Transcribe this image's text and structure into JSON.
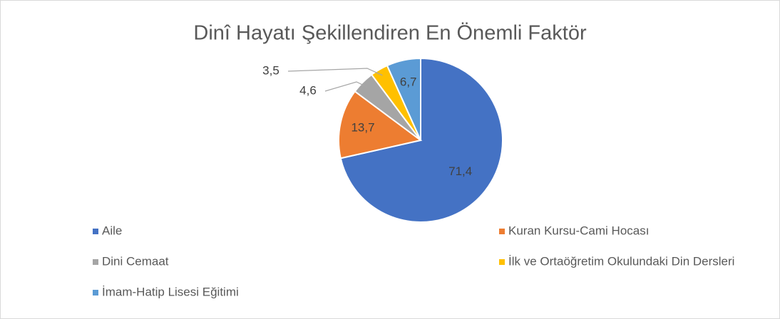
{
  "chart_data": {
    "type": "pie",
    "title": "Dinî Hayatı Şekillendiren En Önemli Faktör",
    "categories": [
      "Aile",
      "Kuran Kursu-Cami Hocası",
      "Dini Cemaat",
      "İlk ve Ortaöğretim Okulundaki Din Dersleri",
      "İmam-Hatip Lisesi Eğitimi"
    ],
    "values": [
      71.4,
      13.7,
      4.6,
      3.5,
      6.7
    ],
    "value_labels": [
      "71,4",
      "13,7",
      "4,6",
      "3,5",
      "6,7"
    ],
    "colors": [
      "#4472c4",
      "#ed7d31",
      "#a5a5a5",
      "#ffc000",
      "#5b9bd5"
    ],
    "legend": "bottom"
  }
}
